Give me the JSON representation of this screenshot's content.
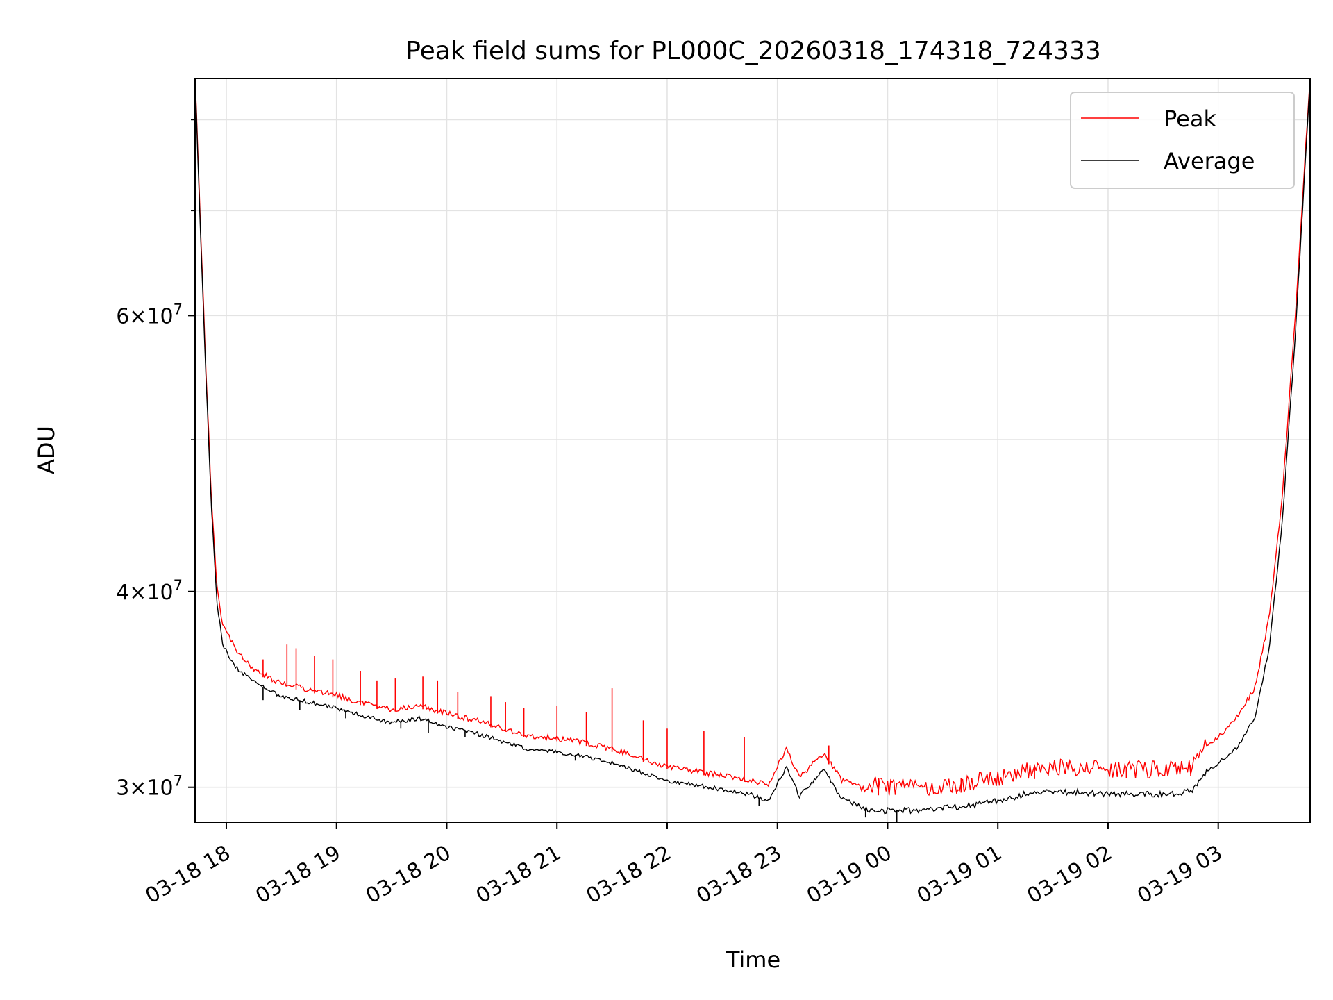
{
  "chart_data": {
    "type": "line",
    "title": "Peak field sums for PL000C_20260318_174318_724333",
    "xlabel": "Time",
    "ylabel": "ADU",
    "x_axis": {
      "kind": "datetime",
      "range": [
        "2026-03-18T17:43:00",
        "2026-03-19T03:50:00"
      ],
      "ticks": [
        {
          "value": "2026-03-18T18:00",
          "label": "03-18 18"
        },
        {
          "value": "2026-03-18T19:00",
          "label": "03-18 19"
        },
        {
          "value": "2026-03-18T20:00",
          "label": "03-18 20"
        },
        {
          "value": "2026-03-18T21:00",
          "label": "03-18 21"
        },
        {
          "value": "2026-03-18T22:00",
          "label": "03-18 22"
        },
        {
          "value": "2026-03-18T23:00",
          "label": "03-18 23"
        },
        {
          "value": "2026-03-19T00:00",
          "label": "03-19 00"
        },
        {
          "value": "2026-03-19T01:00",
          "label": "03-19 01"
        },
        {
          "value": "2026-03-19T02:00",
          "label": "03-19 02"
        },
        {
          "value": "2026-03-19T03:00",
          "label": "03-19 03"
        }
      ]
    },
    "y_axis": {
      "scale": "log",
      "range": [
        28500000,
        85000000
      ],
      "major_ticks": [
        {
          "value": 30000000,
          "mantissa": "3",
          "base": "10",
          "exponent": "7"
        },
        {
          "value": 40000000,
          "mantissa": "4",
          "base": "10",
          "exponent": "7"
        },
        {
          "value": 60000000,
          "mantissa": "6",
          "base": "10",
          "exponent": "7"
        }
      ],
      "minor_ticks": [
        50000000,
        70000000,
        80000000
      ]
    },
    "grid": true,
    "legend_position": "top-right",
    "series": [
      {
        "name": "Peak",
        "color": "#ff0000",
        "points": [
          [
            "2026-03-18T17:43",
            85000000
          ],
          [
            "2026-03-18T17:46",
            68000000
          ],
          [
            "2026-03-18T17:49",
            55000000
          ],
          [
            "2026-03-18T17:52",
            45500000
          ],
          [
            "2026-03-18T17:55",
            40000000
          ],
          [
            "2026-03-18T17:58",
            38000000
          ],
          [
            "2026-03-18T18:05",
            36600000
          ],
          [
            "2026-03-18T18:15",
            35500000
          ],
          [
            "2026-03-18T18:30",
            34800000
          ],
          [
            "2026-03-18T18:45",
            34500000
          ],
          [
            "2026-03-18T19:00",
            34200000
          ],
          [
            "2026-03-18T19:15",
            33800000
          ],
          [
            "2026-03-18T19:30",
            33500000
          ],
          [
            "2026-03-18T19:45",
            33700000
          ],
          [
            "2026-03-18T20:00",
            33300000
          ],
          [
            "2026-03-18T20:15",
            33000000
          ],
          [
            "2026-03-18T20:30",
            32600000
          ],
          [
            "2026-03-18T20:45",
            32200000
          ],
          [
            "2026-03-18T21:00",
            32100000
          ],
          [
            "2026-03-18T21:15",
            31900000
          ],
          [
            "2026-03-18T21:30",
            31600000
          ],
          [
            "2026-03-18T21:45",
            31200000
          ],
          [
            "2026-03-18T22:00",
            30800000
          ],
          [
            "2026-03-18T22:15",
            30600000
          ],
          [
            "2026-03-18T22:30",
            30400000
          ],
          [
            "2026-03-18T22:45",
            30200000
          ],
          [
            "2026-03-18T22:55",
            30000000
          ],
          [
            "2026-03-18T23:05",
            31600000
          ],
          [
            "2026-03-18T23:12",
            30300000
          ],
          [
            "2026-03-18T23:25",
            31400000
          ],
          [
            "2026-03-18T23:35",
            30200000
          ],
          [
            "2026-03-18T23:50",
            29700000
          ],
          [
            "2026-03-19T00:00",
            29600000
          ],
          [
            "2026-03-19T00:15",
            29600000
          ],
          [
            "2026-03-19T00:30",
            29700000
          ],
          [
            "2026-03-19T00:45",
            29800000
          ],
          [
            "2026-03-19T01:00",
            30000000
          ],
          [
            "2026-03-19T01:15",
            30300000
          ],
          [
            "2026-03-19T01:30",
            30500000
          ],
          [
            "2026-03-19T01:45",
            30500000
          ],
          [
            "2026-03-19T02:00",
            30400000
          ],
          [
            "2026-03-19T02:15",
            30400000
          ],
          [
            "2026-03-19T02:30",
            30400000
          ],
          [
            "2026-03-19T02:45",
            30500000
          ],
          [
            "2026-03-19T02:52",
            31500000
          ],
          [
            "2026-03-19T03:00",
            32200000
          ],
          [
            "2026-03-19T03:10",
            33100000
          ],
          [
            "2026-03-19T03:20",
            34600000
          ],
          [
            "2026-03-19T03:28",
            38500000
          ],
          [
            "2026-03-19T03:35",
            46000000
          ],
          [
            "2026-03-19T03:42",
            60000000
          ],
          [
            "2026-03-19T03:50",
            85000000
          ]
        ],
        "spikes": [
          [
            "2026-03-18T18:20",
            36200000
          ],
          [
            "2026-03-18T18:33",
            37000000
          ],
          [
            "2026-03-18T18:38",
            36800000
          ],
          [
            "2026-03-18T18:48",
            36400000
          ],
          [
            "2026-03-18T18:58",
            36200000
          ],
          [
            "2026-03-18T19:13",
            35600000
          ],
          [
            "2026-03-18T19:22",
            35100000
          ],
          [
            "2026-03-18T19:32",
            35200000
          ],
          [
            "2026-03-18T19:47",
            35300000
          ],
          [
            "2026-03-18T19:55",
            35100000
          ],
          [
            "2026-03-18T20:06",
            34500000
          ],
          [
            "2026-03-18T20:24",
            34300000
          ],
          [
            "2026-03-18T20:32",
            34000000
          ],
          [
            "2026-03-18T20:42",
            33700000
          ],
          [
            "2026-03-18T21:00",
            33800000
          ],
          [
            "2026-03-18T21:16",
            33500000
          ],
          [
            "2026-03-18T21:30",
            34700000
          ],
          [
            "2026-03-18T21:47",
            33100000
          ],
          [
            "2026-03-18T22:00",
            32700000
          ],
          [
            "2026-03-18T22:20",
            32600000
          ],
          [
            "2026-03-18T22:42",
            32300000
          ],
          [
            "2026-03-18T23:28",
            31900000
          ],
          [
            "2026-03-18T23:55",
            30400000
          ],
          [
            "2026-03-19T00:40",
            30400000
          ],
          [
            "2026-03-19T01:20",
            30900000
          ],
          [
            "2026-03-19T02:10",
            30900000
          ],
          [
            "2026-03-19T02:45",
            31000000
          ]
        ]
      },
      {
        "name": "Average",
        "color": "#000000",
        "points": [
          [
            "2026-03-18T17:43",
            85000000
          ],
          [
            "2026-03-18T17:46",
            67500000
          ],
          [
            "2026-03-18T17:49",
            54500000
          ],
          [
            "2026-03-18T17:52",
            45000000
          ],
          [
            "2026-03-18T17:55",
            39300000
          ],
          [
            "2026-03-18T17:58",
            37000000
          ],
          [
            "2026-03-18T18:05",
            35800000
          ],
          [
            "2026-03-18T18:15",
            35000000
          ],
          [
            "2026-03-18T18:30",
            34300000
          ],
          [
            "2026-03-18T18:45",
            34000000
          ],
          [
            "2026-03-18T19:00",
            33700000
          ],
          [
            "2026-03-18T19:15",
            33300000
          ],
          [
            "2026-03-18T19:30",
            33000000
          ],
          [
            "2026-03-18T19:45",
            33200000
          ],
          [
            "2026-03-18T20:00",
            32800000
          ],
          [
            "2026-03-18T20:15",
            32500000
          ],
          [
            "2026-03-18T20:30",
            32100000
          ],
          [
            "2026-03-18T20:45",
            31700000
          ],
          [
            "2026-03-18T21:00",
            31600000
          ],
          [
            "2026-03-18T21:15",
            31400000
          ],
          [
            "2026-03-18T21:30",
            31100000
          ],
          [
            "2026-03-18T21:45",
            30700000
          ],
          [
            "2026-03-18T22:00",
            30300000
          ],
          [
            "2026-03-18T22:15",
            30100000
          ],
          [
            "2026-03-18T22:30",
            29900000
          ],
          [
            "2026-03-18T22:45",
            29700000
          ],
          [
            "2026-03-18T22:55",
            29400000
          ],
          [
            "2026-03-18T23:05",
            30900000
          ],
          [
            "2026-03-18T23:12",
            29600000
          ],
          [
            "2026-03-18T23:25",
            30800000
          ],
          [
            "2026-03-18T23:35",
            29500000
          ],
          [
            "2026-03-18T23:50",
            29000000
          ],
          [
            "2026-03-19T00:00",
            29000000
          ],
          [
            "2026-03-19T00:15",
            29000000
          ],
          [
            "2026-03-19T00:30",
            29100000
          ],
          [
            "2026-03-19T00:45",
            29200000
          ],
          [
            "2026-03-19T01:00",
            29400000
          ],
          [
            "2026-03-19T01:15",
            29700000
          ],
          [
            "2026-03-19T01:30",
            29800000
          ],
          [
            "2026-03-19T01:45",
            29800000
          ],
          [
            "2026-03-19T02:00",
            29700000
          ],
          [
            "2026-03-19T02:15",
            29700000
          ],
          [
            "2026-03-19T02:30",
            29700000
          ],
          [
            "2026-03-19T02:45",
            29800000
          ],
          [
            "2026-03-19T02:52",
            30600000
          ],
          [
            "2026-03-19T03:00",
            31100000
          ],
          [
            "2026-03-19T03:10",
            31800000
          ],
          [
            "2026-03-19T03:20",
            33200000
          ],
          [
            "2026-03-19T03:28",
            37000000
          ],
          [
            "2026-03-19T03:35",
            44500000
          ],
          [
            "2026-03-19T03:42",
            58500000
          ],
          [
            "2026-03-19T03:50",
            85000000
          ]
        ],
        "dips": [
          [
            "2026-03-18T18:20",
            34100000
          ],
          [
            "2026-03-18T18:40",
            33600000
          ],
          [
            "2026-03-18T19:05",
            33200000
          ],
          [
            "2026-03-18T19:35",
            32700000
          ],
          [
            "2026-03-18T19:50",
            32500000
          ],
          [
            "2026-03-18T20:10",
            32300000
          ],
          [
            "2026-03-18T21:10",
            31200000
          ],
          [
            "2026-03-18T22:50",
            29200000
          ],
          [
            "2026-03-18T23:48",
            28700000
          ],
          [
            "2026-03-19T00:05",
            28500000
          ]
        ]
      }
    ]
  }
}
